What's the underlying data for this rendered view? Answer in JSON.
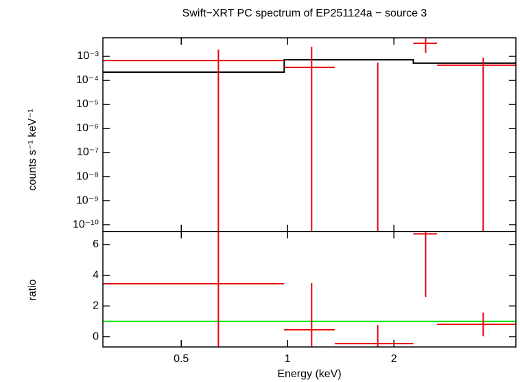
{
  "chart_data": [
    {
      "type": "errorbar",
      "title": "Swift−XRT PC spectrum of EP251124a − source 3",
      "ylabel": "counts s⁻¹ keV⁻¹",
      "xlog": true,
      "ylog": true,
      "xlim": [
        0.3,
        4.43
      ],
      "ylim": [
        5.2e-11,
        0.0059
      ],
      "xticks": [
        0.5,
        1,
        2
      ],
      "yticks": [
        {
          "value": 0.001,
          "label": "10⁻³"
        },
        {
          "value": 0.0001,
          "label": "10⁻⁴"
        },
        {
          "value": 1e-05,
          "label": "10⁻⁵"
        },
        {
          "value": 1e-06,
          "label": "10⁻⁶"
        },
        {
          "value": 1e-07,
          "label": "10⁻⁷"
        },
        {
          "value": 1e-08,
          "label": "10⁻⁸"
        },
        {
          "value": 1e-09,
          "label": "10⁻⁹"
        },
        {
          "value": 1e-10,
          "label": "10⁻¹⁰"
        }
      ],
      "series": [
        {
          "color": "#e8000b",
          "bins": [
            0.3,
            0.978,
            1.36,
            2.27,
            2.65,
            4.43
          ],
          "x": [
            0.637,
            1.17,
            1.8,
            2.46,
            3.58
          ],
          "values": [
            0.00067,
            0.00035,
            -0.00032,
            0.0035,
            0.00043
          ],
          "errors": [
            0.00123,
            0.00215,
            0.00087,
            0.0021,
            0.00045
          ]
        }
      ],
      "model": {
        "color": "#000000",
        "bins": [
          0.3,
          0.978,
          2.27,
          4.43
        ],
        "values": [
          0.00022,
          0.00072,
          0.00052
        ]
      }
    },
    {
      "type": "errorbar",
      "xlabel": "Energy (keV)",
      "ylabel": "ratio",
      "xlog": true,
      "ylog": false,
      "xlim": [
        0.3,
        4.43
      ],
      "ylim": [
        -0.67,
        6.85
      ],
      "xticks": [
        0.5,
        1,
        2
      ],
      "yticks": [
        0,
        2,
        4,
        6
      ],
      "series": [
        {
          "color": "#e8000b",
          "bins": [
            0.3,
            0.978,
            1.36,
            2.27,
            2.65,
            4.43
          ],
          "x": [
            0.637,
            1.17,
            1.8,
            2.46,
            3.58
          ],
          "values": [
            3.45,
            0.45,
            -0.45,
            6.7,
            0.8
          ],
          "errors": [
            5.6,
            3.05,
            1.21,
            4.1,
            0.77
          ]
        }
      ],
      "reference": {
        "value": 1,
        "color": "#00e000"
      }
    }
  ]
}
